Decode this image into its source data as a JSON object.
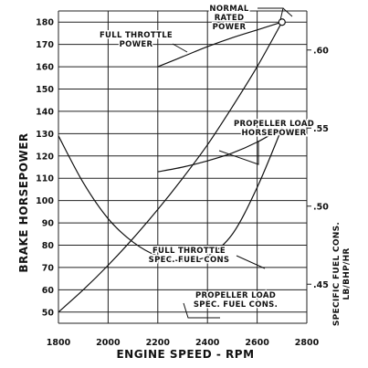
{
  "chart_data": {
    "type": "line",
    "xlabel": "ENGINE SPEED - RPM",
    "ylabel": "BRAKE HORSEPOWER",
    "y2label": "SPECIFIC FUEL CONS. LB/BHP/HR",
    "xlim": [
      1800,
      2800
    ],
    "ylim": [
      45,
      185
    ],
    "y2lim": [
      0.425,
      0.625
    ],
    "x_ticks": [
      "1800",
      "2000",
      "2200",
      "2400",
      "2600",
      "2800"
    ],
    "y_ticks": [
      "50",
      "60",
      "70",
      "80",
      "90",
      "100",
      "110",
      "120",
      "130",
      "140",
      "150",
      "160",
      "170",
      "180"
    ],
    "y2_ticks": [
      ".45",
      ".50",
      ".55",
      ".60"
    ],
    "grid": true,
    "series": [
      {
        "name": "FULL THROTTLE POWER",
        "axis": "left",
        "x": [
          2200,
          2300,
          2400,
          2500,
          2600,
          2700
        ],
        "y": [
          160,
          164.5,
          169,
          173,
          176.5,
          180
        ]
      },
      {
        "name": "PROPELLER LOAD HORSEPOWER",
        "axis": "left",
        "x": [
          1800,
          1900,
          2000,
          2100,
          2200,
          2300,
          2400,
          2500,
          2600,
          2700
        ],
        "y": [
          50,
          60,
          71,
          83,
          96,
          110,
          125,
          142,
          160,
          180
        ]
      },
      {
        "name": "FULL THROTTLE SPEC. FUEL CONS",
        "axis": "right",
        "x": [
          2200,
          2300,
          2400,
          2500,
          2600,
          2700
        ],
        "y": [
          0.522,
          0.525,
          0.529,
          0.534,
          0.541,
          0.55
        ]
      },
      {
        "name": "PROPELLER LOAD SPEC. FUEL CONS.",
        "axis": "right",
        "x": [
          1800,
          1900,
          2000,
          2100,
          2200,
          2300,
          2400,
          2500,
          2600,
          2700
        ],
        "y": [
          0.545,
          0.515,
          0.492,
          0.477,
          0.468,
          0.465,
          0.468,
          0.482,
          0.512,
          0.55
        ]
      }
    ],
    "annotations": [
      {
        "lines": [
          "NORMAL",
          "RATED",
          "POWER"
        ],
        "x": 2700,
        "y": 180
      },
      {
        "lines": [
          "FULL THROTTLE",
          "POWER"
        ]
      },
      {
        "lines": [
          "PROPELLER LOAD",
          "HORSEPOWER"
        ]
      },
      {
        "lines": [
          "FULL THROTTLE",
          "SPEC. FUEL CONS"
        ]
      },
      {
        "lines": [
          "PROPELLER LOAD",
          "SPEC. FUEL CONS."
        ]
      }
    ]
  }
}
